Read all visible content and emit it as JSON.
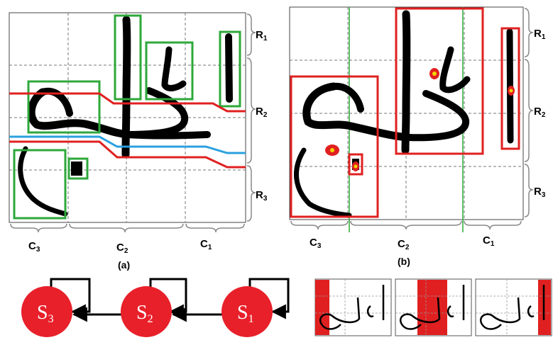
{
  "panel_a": {
    "caption": "(a)",
    "rows": [
      {
        "main": "R",
        "sub": "1"
      },
      {
        "main": "R",
        "sub": "2"
      },
      {
        "main": "R",
        "sub": "3"
      }
    ],
    "cols": [
      {
        "main": "C",
        "sub": "3"
      },
      {
        "main": "C",
        "sub": "2"
      },
      {
        "main": "C",
        "sub": "1"
      }
    ]
  },
  "panel_b": {
    "caption": "(b)",
    "rows": [
      {
        "main": "R",
        "sub": "1"
      },
      {
        "main": "R",
        "sub": "2"
      },
      {
        "main": "R",
        "sub": "3"
      }
    ],
    "cols": [
      {
        "main": "C",
        "sub": "3"
      },
      {
        "main": "C",
        "sub": "2"
      },
      {
        "main": "C",
        "sub": "1"
      }
    ]
  },
  "hmm": {
    "states": [
      {
        "main": "S",
        "sub": "3"
      },
      {
        "main": "S",
        "sub": "2"
      },
      {
        "main": "S",
        "sub": "1"
      }
    ],
    "state_color": "#e8202a"
  },
  "colors": {
    "green_box": "#2ea83a",
    "red_box": "#e02020",
    "blue_line": "#2aa0e0",
    "ink": "#000000"
  }
}
